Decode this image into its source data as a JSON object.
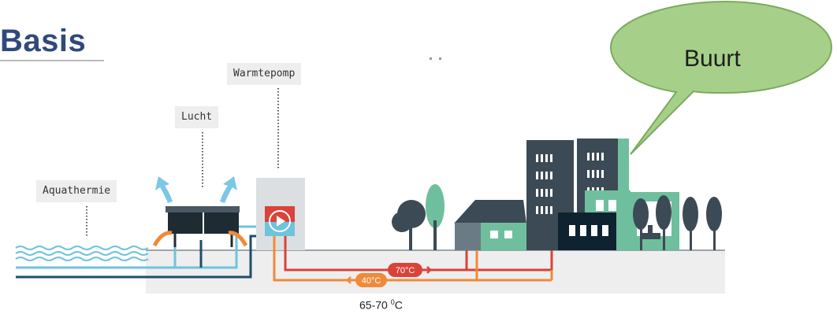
{
  "title": "Basis",
  "labels": {
    "aquathermie": "Aquathermie",
    "lucht": "Lucht",
    "warmtepomp": "Warmtepomp"
  },
  "callout": {
    "text": "Buurt"
  },
  "pipes": {
    "hot_label": "70°C",
    "return_label": "40°C"
  },
  "footnote": {
    "text": "65-70 ",
    "degree": "0",
    "unit": "C"
  },
  "colors": {
    "title": "#2f4a7a",
    "water": "#6fc3dc",
    "dark_pipe": "#1f4d6b",
    "hot_pipe": "#d9433a",
    "return_pipe": "#ef8a3a",
    "ground": "#eeeeee",
    "building_dark": "#3c4a55",
    "building_green": "#6fbf9e",
    "callout_fill": "#a6d08a",
    "callout_stroke": "#7caa5d"
  }
}
